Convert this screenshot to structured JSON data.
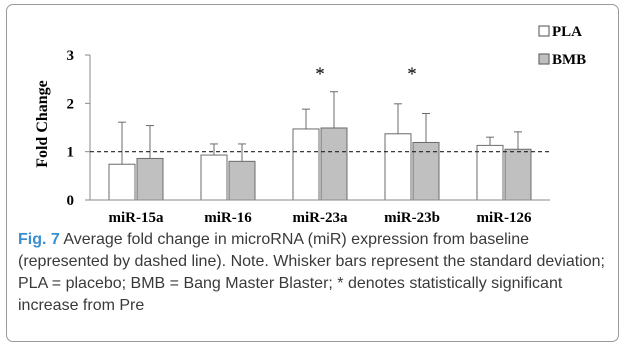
{
  "colors": {
    "pla_fill": "#ffffff",
    "bmb_fill": "#c0c0c0",
    "bar_stroke": "#6b6b6b",
    "caption_label": "#3a8fd0",
    "caption_text": "#3a3a3a",
    "frame": "#9a9a9a"
  },
  "caption": {
    "label": "Fig. 7",
    "text": "Average fold change in microRNA (miR) expression from baseline (represented by dashed line). Note. Whisker bars represent the standard deviation; PLA = placebo; BMB = Bang Master Blaster; * denotes statistically significant increase from Pre"
  },
  "chart_data": {
    "type": "bar",
    "title": "",
    "xlabel": "",
    "ylabel": "Fold Change",
    "ylim": [
      0,
      3
    ],
    "yticks": [
      0,
      1,
      2,
      3
    ],
    "grid": false,
    "legend_placement": "top-right",
    "baseline": 1,
    "baseline_style": "dashed",
    "categories": [
      "miR-15a",
      "miR-16",
      "miR-23a",
      "miR-23b",
      "miR-126"
    ],
    "series": [
      {
        "name": "PLA",
        "values": [
          0.74,
          0.93,
          1.47,
          1.37,
          1.13
        ],
        "error_plus": [
          0.87,
          0.23,
          0.41,
          0.62,
          0.17
        ]
      },
      {
        "name": "BMB",
        "values": [
          0.86,
          0.8,
          1.49,
          1.19,
          1.05
        ],
        "error_plus": [
          0.68,
          0.36,
          0.75,
          0.6,
          0.36
        ]
      }
    ],
    "significance": [
      "",
      "",
      "*",
      "*",
      ""
    ]
  }
}
